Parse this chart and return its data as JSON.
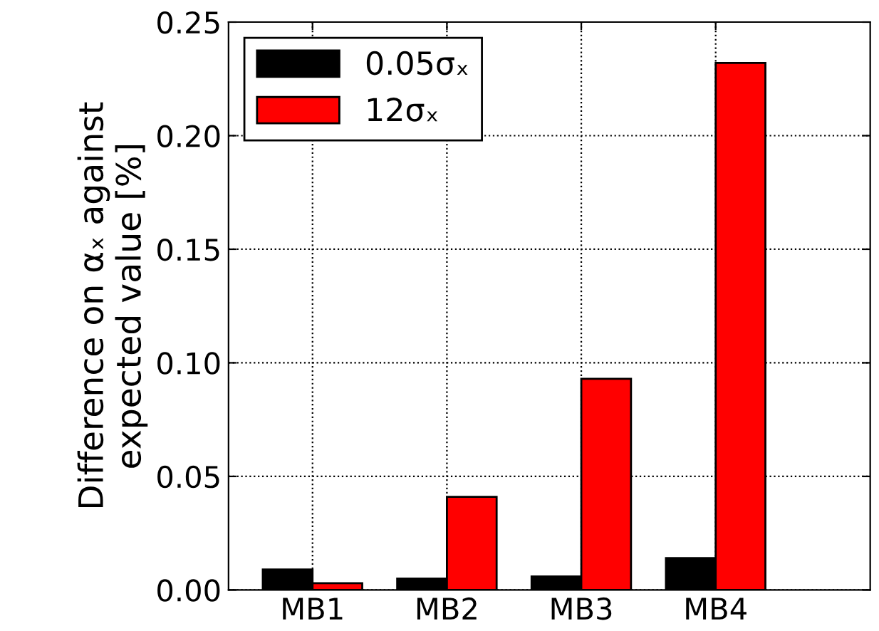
{
  "chart_data": {
    "type": "bar",
    "ylabel": "Difference on αₓ against\nexpected value [%]",
    "categories": [
      "MB1",
      "MB2",
      "MB3",
      "MB4"
    ],
    "series": [
      {
        "name": "0.05σₓ",
        "color": "#000000",
        "values": [
          0.009,
          0.005,
          0.006,
          0.014
        ]
      },
      {
        "name": "12σₓ",
        "color": "#ff0000",
        "values": [
          0.003,
          0.041,
          0.093,
          0.232
        ]
      }
    ],
    "ylim": [
      0,
      0.25
    ],
    "yticks": [
      {
        "value": 0,
        "label": "0.00"
      },
      {
        "value": 0.05,
        "label": "0.05"
      },
      {
        "value": 0.1,
        "label": "0.10"
      },
      {
        "value": 0.15,
        "label": "0.15"
      },
      {
        "value": 0.2,
        "label": "0.20"
      },
      {
        "value": 0.25,
        "label": "0.25"
      }
    ],
    "grid": true,
    "legend": "top left"
  }
}
